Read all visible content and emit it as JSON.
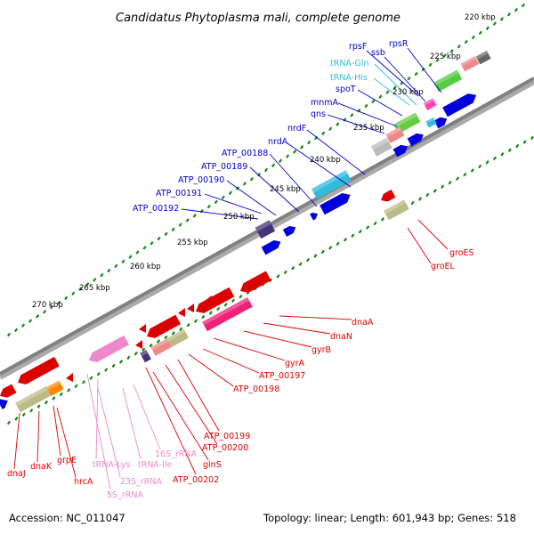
{
  "title": "Candidatus Phytoplasma mali, complete genome",
  "footer": {
    "accession": "Accession: NC_011047",
    "summary": "Topology: linear; Length: 601,943 bp; Genes: 518"
  },
  "colors": {
    "cds_plus": "#0000dd",
    "cds_minus": "#dd0000",
    "trna": "#33bbdd",
    "rrna": "#ee88cc",
    "backbone": "#808080",
    "ticks": "#118811"
  },
  "ticks": [
    "220 kbp",
    "225 kbp",
    "230 kbp",
    "235 kbp",
    "240 kbp",
    "245 kbp",
    "250 kbp",
    "255 kbp",
    "260 kbp",
    "265 kbp",
    "270 kbp"
  ],
  "labels_outer": [
    {
      "text": "rpsF",
      "color": "#0000cc"
    },
    {
      "text": "ssb",
      "color": "#0000cc"
    },
    {
      "text": "rpsR",
      "color": "#0000cc"
    },
    {
      "text": "tRNA-Gln",
      "color": "#33bbdd"
    },
    {
      "text": "tRNA-His",
      "color": "#33bbdd"
    },
    {
      "text": "spoT",
      "color": "#0000cc"
    },
    {
      "text": "mnmA",
      "color": "#0000cc"
    },
    {
      "text": "qns",
      "color": "#0000cc"
    },
    {
      "text": "nrdF",
      "color": "#0000cc"
    },
    {
      "text": "nrdA",
      "color": "#0000cc"
    },
    {
      "text": "ATP_00188",
      "color": "#0000cc"
    },
    {
      "text": "ATP_00189",
      "color": "#0000cc"
    },
    {
      "text": "ATP_00190",
      "color": "#0000cc"
    },
    {
      "text": "ATP_00191",
      "color": "#0000cc"
    },
    {
      "text": "ATP_00192",
      "color": "#0000cc"
    }
  ],
  "labels_inner": [
    {
      "text": "groES",
      "color": "#dd0000"
    },
    {
      "text": "groEL",
      "color": "#dd0000"
    },
    {
      "text": "dnaA",
      "color": "#dd0000"
    },
    {
      "text": "dnaN",
      "color": "#dd0000"
    },
    {
      "text": "gyrB",
      "color": "#dd0000"
    },
    {
      "text": "gyrA",
      "color": "#dd0000"
    },
    {
      "text": "ATP_00197",
      "color": "#dd0000"
    },
    {
      "text": "ATP_00198",
      "color": "#dd0000"
    },
    {
      "text": "ATP_00199",
      "color": "#dd0000"
    },
    {
      "text": "ATP_00200",
      "color": "#dd0000"
    },
    {
      "text": "glnS",
      "color": "#dd0000"
    },
    {
      "text": "ATP_00202",
      "color": "#dd0000"
    },
    {
      "text": "16S_rRNA",
      "color": "#ee88cc"
    },
    {
      "text": "tRNA-Ile",
      "color": "#ee88cc"
    },
    {
      "text": "23S_rRNA",
      "color": "#ee88cc"
    },
    {
      "text": "tRNA-Lys",
      "color": "#ee88cc"
    },
    {
      "text": "5S_rRNA",
      "color": "#ee88cc"
    },
    {
      "text": "hrcA",
      "color": "#dd0000"
    },
    {
      "text": "grpE",
      "color": "#dd0000"
    },
    {
      "text": "dnaK",
      "color": "#dd0000"
    },
    {
      "text": "dnaJ",
      "color": "#dd0000"
    }
  ]
}
